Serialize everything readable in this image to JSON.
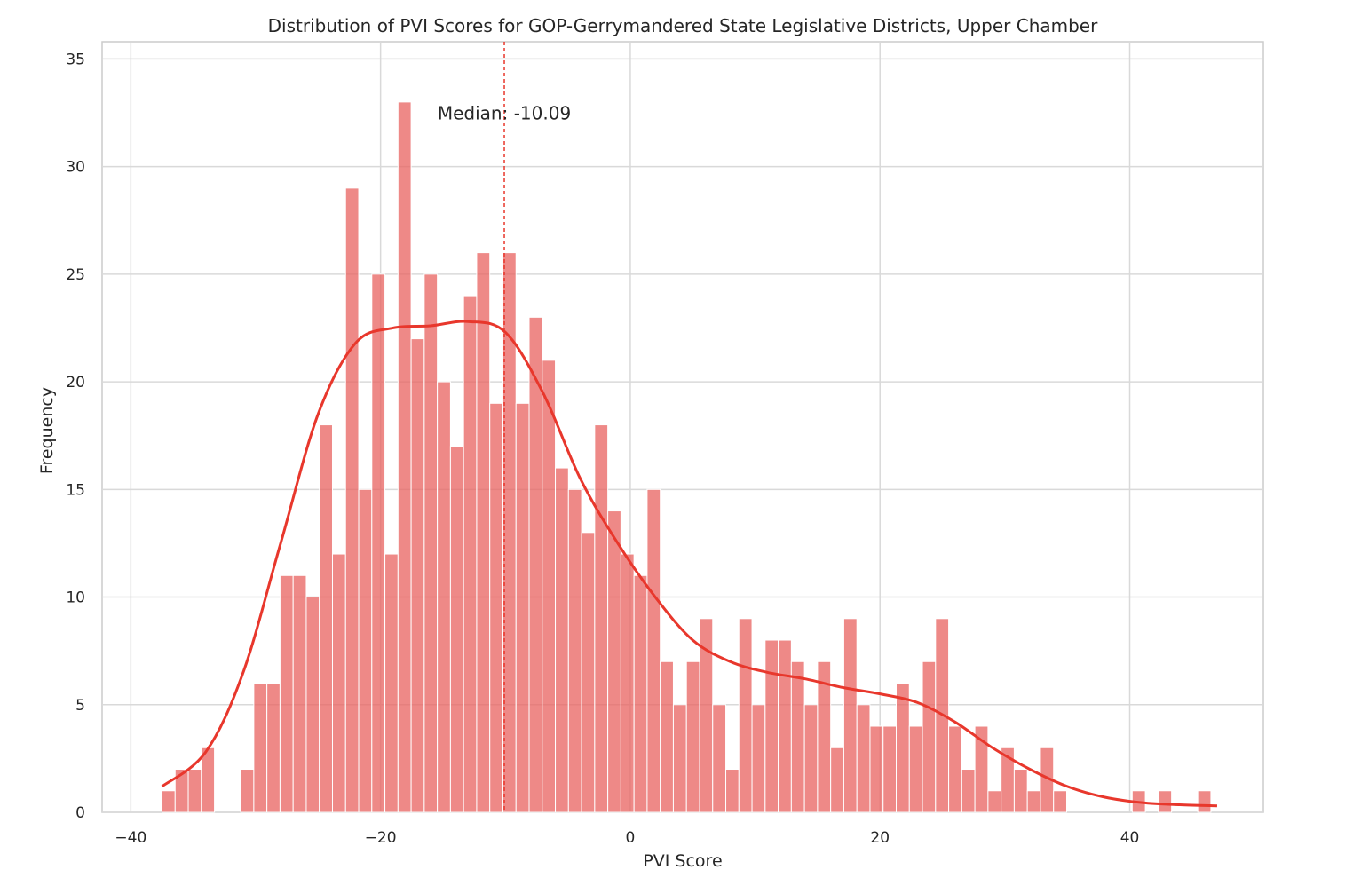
{
  "chart_data": {
    "type": "histogram",
    "title": "Distribution of PVI Scores for GOP-Gerrymandered State Legislative Districts, Upper Chamber",
    "xlabel": "PVI Score",
    "ylabel": "Frequency",
    "xlim": [
      -42.3,
      50.7
    ],
    "ylim": [
      0,
      35.8
    ],
    "x_ticks": [
      -40,
      -20,
      0,
      20,
      40
    ],
    "x_tick_labels": [
      "−40",
      "−20",
      "0",
      "20",
      "40"
    ],
    "y_ticks": [
      0,
      5,
      10,
      15,
      20,
      25,
      30,
      35
    ],
    "y_tick_labels": [
      "0",
      "5",
      "10",
      "15",
      "20",
      "25",
      "30",
      "35"
    ],
    "grid": true,
    "bar_color": "#e8615f",
    "kde_color": "#e8372c",
    "median_color": "#e8372c",
    "bin_start": -37.5,
    "bin_width": 1.05,
    "bin_counts": [
      1,
      2,
      2,
      3,
      0,
      0,
      2,
      6,
      6,
      11,
      11,
      10,
      18,
      12,
      29,
      15,
      25,
      12,
      33,
      22,
      25,
      20,
      17,
      24,
      26,
      19,
      26,
      19,
      23,
      21,
      16,
      15,
      13,
      18,
      14,
      12,
      11,
      15,
      7,
      5,
      7,
      9,
      5,
      2,
      9,
      5,
      8,
      8,
      7,
      5,
      7,
      3,
      9,
      5,
      4,
      4,
      6,
      4,
      7,
      9,
      4,
      2,
      4,
      1,
      3,
      2,
      1,
      3,
      1,
      0,
      0,
      0,
      0,
      0,
      1,
      0,
      1,
      0,
      0,
      1
    ],
    "kde": {
      "x": [
        -37.5,
        -34,
        -31,
        -28,
        -25,
        -22,
        -19,
        -16,
        -13,
        -10,
        -7,
        -4,
        -1,
        2,
        5,
        8,
        11,
        14,
        17,
        20,
        23,
        26,
        29,
        32,
        35,
        38,
        41,
        44,
        47
      ],
      "y": [
        1.2,
        2.8,
        6.5,
        12.5,
        18.5,
        21.8,
        22.5,
        22.6,
        22.8,
        22.3,
        19.5,
        15.5,
        12.5,
        10.0,
        8.0,
        7.0,
        6.5,
        6.2,
        5.8,
        5.5,
        5.1,
        4.2,
        3.0,
        2.0,
        1.2,
        0.7,
        0.45,
        0.35,
        0.3
      ]
    },
    "median": -10.09,
    "median_label": "Median: -10.09"
  }
}
